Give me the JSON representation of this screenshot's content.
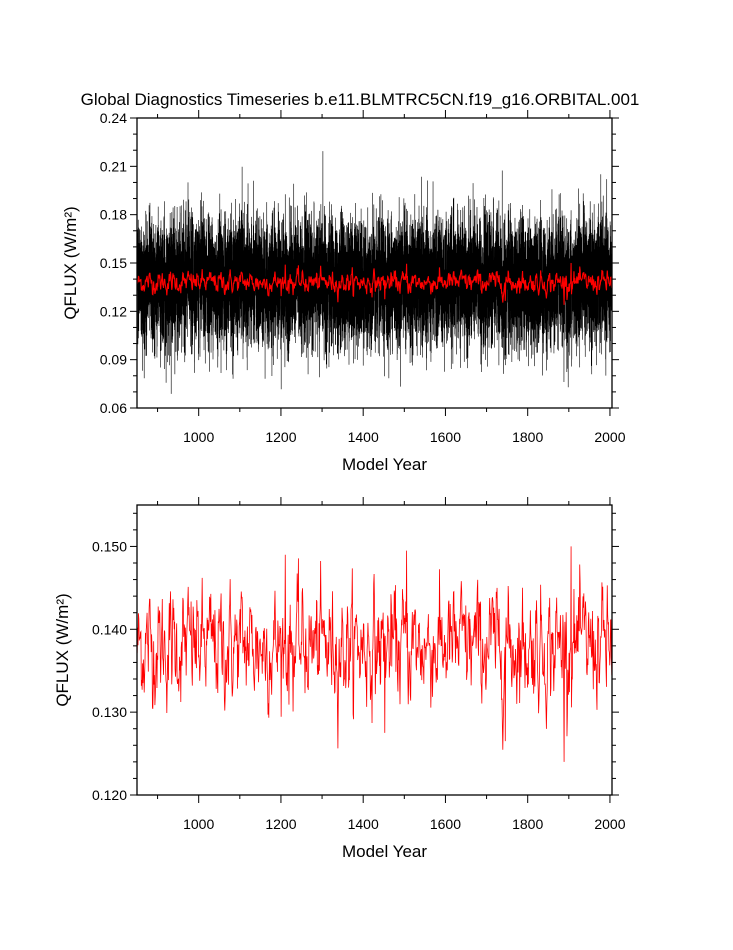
{
  "title": "Global Diagnostics Timeseries b.e11.BLMTRC5CN.f19_g16.ORBITAL.001",
  "colors": {
    "noisy": "#000000",
    "smooth": "#ff0000",
    "background": "#ffffff"
  },
  "chart_data": [
    {
      "type": "line",
      "panel": "top",
      "xlabel": "Model Year",
      "ylabel": "QFLUX (W/m²)",
      "xlim": [
        850,
        2005
      ],
      "ylim": [
        0.06,
        0.24
      ],
      "x_ticks": [
        1000,
        1200,
        1400,
        1600,
        1800,
        2000
      ],
      "x_tick_labels": [
        "1000",
        "1200",
        "1400",
        "1600",
        "1800",
        "2000"
      ],
      "y_ticks": [
        0.06,
        0.09,
        0.12,
        0.15,
        0.18,
        0.21,
        0.24
      ],
      "y_tick_labels": [
        "0.06",
        "0.09",
        "0.12",
        "0.15",
        "0.18",
        "0.21",
        "0.24"
      ],
      "grid": false,
      "series": [
        {
          "color": "#000000",
          "style": "monthly",
          "x_start": 850,
          "x_end": 2005,
          "approx_mean": 0.138,
          "approx_min": 0.068,
          "approx_max": 0.23
        },
        {
          "color": "#ff0000",
          "style": "annual",
          "x_start": 850,
          "x_end": 2005,
          "approx_mean": 0.138,
          "approx_min": 0.124,
          "approx_max": 0.15
        }
      ]
    },
    {
      "type": "line",
      "panel": "bottom",
      "xlabel": "Model Year",
      "ylabel": "QFLUX (W/m²)",
      "xlim": [
        850,
        2005
      ],
      "ylim": [
        0.12,
        0.155
      ],
      "x_ticks": [
        1000,
        1200,
        1400,
        1600,
        1800,
        2000
      ],
      "x_tick_labels": [
        "1000",
        "1200",
        "1400",
        "1600",
        "1800",
        "2000"
      ],
      "y_ticks": [
        0.12,
        0.13,
        0.14,
        0.15
      ],
      "y_tick_labels": [
        "0.120",
        "0.130",
        "0.140",
        "0.150"
      ],
      "grid": false,
      "series": [
        {
          "color": "#ff0000",
          "style": "annual",
          "x_start": 850,
          "x_end": 2005,
          "approx_mean": 0.138,
          "approx_min": 0.124,
          "approx_max": 0.15,
          "notable": [
            {
              "x": 1210,
              "y": 0.149
            },
            {
              "x": 1452,
              "y": 0.1275
            },
            {
              "x": 1505,
              "y": 0.1495
            },
            {
              "x": 1745,
              "y": 0.1265
            },
            {
              "x": 1888,
              "y": 0.124
            },
            {
              "x": 1905,
              "y": 0.15
            }
          ]
        }
      ]
    }
  ]
}
